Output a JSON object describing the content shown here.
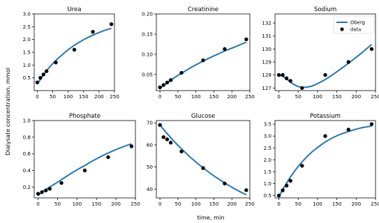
{
  "figure": {
    "ylabel": "Dialysate concentration, mmol",
    "xlabel": "time, min"
  },
  "legend": {
    "line_label": "Oberg",
    "dot_label": "data",
    "placement": "upper right (Sodium panel)"
  },
  "colors": {
    "model_line": "#1f77b4",
    "data_points": "#000000"
  },
  "chart_data": [
    {
      "type": "scatter",
      "title": "Urea",
      "xlabel": "",
      "ylabel": "",
      "xlim": [
        -10,
        250
      ],
      "ylim": [
        0,
        3.0
      ],
      "xticks": [
        0,
        50,
        100,
        150,
        200,
        250
      ],
      "yticks": [
        0.5,
        1.0,
        1.5,
        2.0,
        2.5,
        3.0
      ],
      "ytick_labels": [
        "0.5",
        "1.0",
        "1.5",
        "2.0",
        "2.5",
        "3.0"
      ],
      "data": {
        "x": [
          0,
          10,
          20,
          30,
          60,
          120,
          180,
          240
        ],
        "y": [
          0.32,
          0.5,
          0.63,
          0.76,
          1.1,
          1.6,
          2.3,
          2.6
        ]
      },
      "model": {
        "x": [
          0,
          20,
          40,
          60,
          90,
          120,
          150,
          180,
          210,
          240
        ],
        "y": [
          0.25,
          0.62,
          0.92,
          1.18,
          1.5,
          1.77,
          1.99,
          2.17,
          2.32,
          2.44
        ]
      }
    },
    {
      "type": "scatter",
      "title": "Creatinine",
      "xlabel": "",
      "ylabel": "",
      "xlim": [
        -10,
        250
      ],
      "ylim": [
        0.01,
        0.2
      ],
      "xticks": [
        0,
        50,
        100,
        150,
        200,
        250
      ],
      "yticks": [
        0.05,
        0.1,
        0.15,
        0.2
      ],
      "ytick_labels": [
        "0.05",
        "0.10",
        "0.15",
        "0.20"
      ],
      "data": {
        "x": [
          0,
          10,
          20,
          30,
          60,
          120,
          180,
          240
        ],
        "y": [
          0.018,
          0.024,
          0.03,
          0.036,
          0.054,
          0.085,
          0.113,
          0.137
        ]
      },
      "model": {
        "x": [
          0,
          20,
          40,
          60,
          90,
          120,
          150,
          180,
          210,
          240
        ],
        "y": [
          0.015,
          0.029,
          0.042,
          0.053,
          0.069,
          0.083,
          0.096,
          0.108,
          0.119,
          0.13
        ]
      }
    },
    {
      "type": "scatter",
      "title": "Sodium",
      "xlabel": "",
      "ylabel": "",
      "xlim": [
        -10,
        250
      ],
      "ylim": [
        126.8,
        132.7
      ],
      "xticks": [
        0,
        50,
        100,
        150,
        200,
        250
      ],
      "yticks": [
        127,
        128,
        129,
        130,
        131,
        132
      ],
      "ytick_labels": [
        "127",
        "128",
        "129",
        "130",
        "131",
        "132"
      ],
      "data": {
        "x": [
          0,
          10,
          20,
          30,
          60,
          120,
          180,
          240
        ],
        "y": [
          128.0,
          128.0,
          127.75,
          127.55,
          127.0,
          128.0,
          129.0,
          130.0
        ]
      },
      "model": {
        "x": [
          0,
          10,
          20,
          30,
          45,
          60,
          75,
          90,
          120,
          150,
          180,
          210,
          240
        ],
        "y": [
          128.0,
          127.9,
          127.7,
          127.45,
          127.18,
          127.05,
          127.08,
          127.2,
          127.65,
          128.25,
          128.9,
          129.6,
          130.35
        ]
      }
    },
    {
      "type": "scatter",
      "title": "Phosphate",
      "xlabel": "",
      "ylabel": "",
      "xlim": [
        -10,
        250
      ],
      "ylim": [
        0.07,
        1.0
      ],
      "xticks": [
        0,
        50,
        100,
        150,
        200,
        250
      ],
      "yticks": [
        0.2,
        0.4,
        0.6,
        0.8,
        1.0
      ],
      "ytick_labels": [
        "0.2",
        "0.4",
        "0.6",
        "0.8",
        "1.0"
      ],
      "data": {
        "x": [
          0,
          10,
          20,
          30,
          60,
          120,
          180,
          240
        ],
        "y": [
          0.12,
          0.14,
          0.16,
          0.18,
          0.25,
          0.4,
          0.56,
          0.69
        ]
      },
      "model": {
        "x": [
          0,
          20,
          40,
          60,
          90,
          120,
          150,
          180,
          210,
          240
        ],
        "y": [
          0.1,
          0.17,
          0.23,
          0.29,
          0.38,
          0.46,
          0.54,
          0.61,
          0.67,
          0.72
        ]
      }
    },
    {
      "type": "scatter",
      "title": "Glucose",
      "xlabel": "",
      "ylabel": "",
      "xlim": [
        -10,
        250
      ],
      "ylim": [
        36,
        71
      ],
      "xticks": [
        0,
        50,
        100,
        150,
        200,
        250
      ],
      "yticks": [
        40,
        50,
        60,
        70
      ],
      "ytick_labels": [
        "40",
        "50",
        "60",
        "70"
      ],
      "data": {
        "x": [
          0,
          10,
          20,
          30,
          60,
          120,
          180,
          240
        ],
        "y": [
          69,
          63.5,
          62.5,
          61,
          57,
          49.5,
          42.5,
          39.5
        ]
      },
      "model": {
        "x": [
          0,
          20,
          40,
          60,
          90,
          120,
          150,
          180,
          210,
          240
        ],
        "y": [
          69,
          65.1,
          61.5,
          58.2,
          53.6,
          49.6,
          46.0,
          42.8,
          39.9,
          37.4
        ]
      }
    },
    {
      "type": "scatter",
      "title": "Potassium",
      "xlabel": "",
      "ylabel": "",
      "xlim": [
        -10,
        250
      ],
      "ylim": [
        0.4,
        3.65
      ],
      "xticks": [
        0,
        50,
        100,
        150,
        200,
        250
      ],
      "yticks": [
        0.5,
        1.0,
        1.5,
        2.0,
        2.5,
        3.0,
        3.5
      ],
      "ytick_labels": [
        "0.5",
        "1.0",
        "1.5",
        "2.0",
        "2.5",
        "3.0",
        "3.5"
      ],
      "data": {
        "x": [
          0,
          10,
          20,
          30,
          60,
          120,
          180,
          240
        ],
        "y": [
          0.5,
          0.72,
          0.92,
          1.12,
          1.75,
          3.0,
          3.27,
          3.5
        ]
      },
      "model": {
        "x": [
          0,
          10,
          20,
          30,
          45,
          60,
          75,
          90,
          120,
          150,
          180,
          210,
          240
        ],
        "y": [
          0.45,
          0.75,
          1.02,
          1.28,
          1.62,
          1.91,
          2.17,
          2.39,
          2.75,
          3.01,
          3.19,
          3.33,
          3.42
        ]
      }
    }
  ]
}
